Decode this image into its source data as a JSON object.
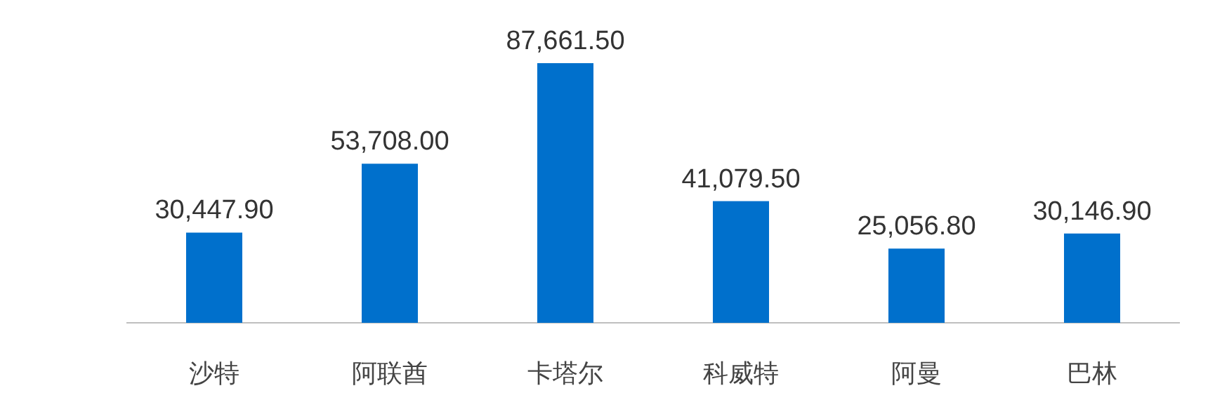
{
  "chart_data": {
    "type": "bar",
    "categories": [
      "沙特",
      "阿联酋",
      "卡塔尔",
      "科威特",
      "阿曼",
      "巴林"
    ],
    "values": [
      30447.9,
      53708.0,
      87661.5,
      41079.5,
      25056.8,
      30146.9
    ],
    "value_labels": [
      "30,447.90",
      "53,708.00",
      "87,661.50",
      "41,079.50",
      "25,056.80",
      "30,146.90"
    ],
    "color": "#0070cc"
  }
}
